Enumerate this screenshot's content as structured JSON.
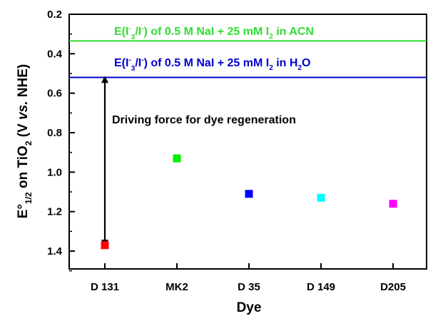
{
  "chart_data": {
    "type": "scatter",
    "xlabel": "Dye",
    "ylabel_parts": {
      "main": "E°",
      "sub1": "1/2",
      "mid": " on TiO",
      "sub2": "2",
      "paren_open": " (V ",
      "vs": "vs.",
      "paren_close": " NHE)"
    },
    "categories": [
      "D131",
      "MK2",
      "D35",
      "D149",
      "D205"
    ],
    "category_labels": [
      "D 131",
      "MK2",
      "D 35",
      "D 149",
      "D205"
    ],
    "points": [
      {
        "category": "D131",
        "value": 1.37,
        "color": "#ff0000"
      },
      {
        "category": "MK2",
        "value": 0.93,
        "color": "#00ee00"
      },
      {
        "category": "D35",
        "value": 1.11,
        "color": "#0000ff"
      },
      {
        "category": "D149",
        "value": 1.13,
        "color": "#00ffff"
      },
      {
        "category": "D205",
        "value": 1.16,
        "color": "#ff00ff"
      }
    ],
    "ylim": [
      0.2,
      1.5
    ],
    "y_inverted": true,
    "yticks": [
      "0.2",
      "0.4",
      "0.6",
      "0.8",
      "1.0",
      "1.2",
      "1.4"
    ],
    "ytick_values": [
      0.2,
      0.4,
      0.6,
      0.8,
      1.0,
      1.2,
      1.4
    ],
    "reference_lines": [
      {
        "value": 0.335,
        "color": "#33dd33",
        "label_parts": {
          "pre": "E(I",
          "sup": "-",
          "sub": "3",
          "mid": "/I",
          "sup2": "-",
          "post1": ") of 0.5 M NaI + 25 mM I",
          "sub2": "2",
          "post2": " in ACN"
        }
      },
      {
        "value": 0.52,
        "color": "#0000cc",
        "label_parts": {
          "pre": "E(I",
          "sup": "-",
          "sub": "3",
          "mid": "/I",
          "sup2": "-",
          "post1": ") of 0.5 M NaI + 25 mM I",
          "sub2": "2",
          "post2": " in H",
          "sub3": "2",
          "post3": "O"
        }
      }
    ],
    "annotation": {
      "text": "Driving force for dye regeneration",
      "arrow_from": 0.53,
      "arrow_to": 1.36,
      "category": "D131"
    },
    "grid": false,
    "legend": "none"
  }
}
